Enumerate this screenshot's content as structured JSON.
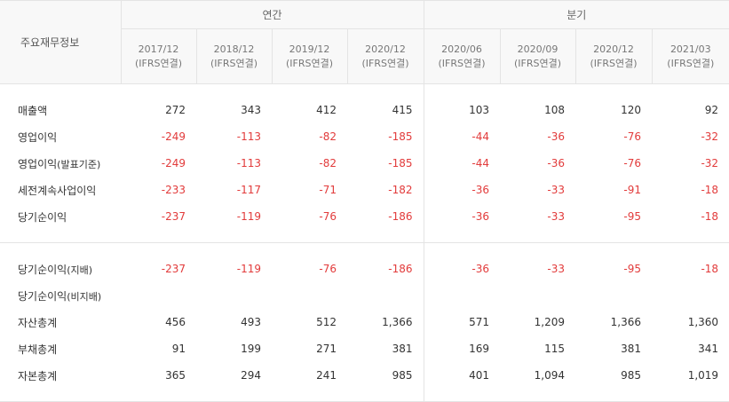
{
  "header": {
    "title": "주요재무정보",
    "annual_label": "연간",
    "quarter_label": "분기",
    "columns": [
      {
        "period": "2017/12",
        "basis": "(IFRS연결)"
      },
      {
        "period": "2018/12",
        "basis": "(IFRS연결)"
      },
      {
        "period": "2019/12",
        "basis": "(IFRS연결)"
      },
      {
        "period": "2020/12",
        "basis": "(IFRS연결)"
      },
      {
        "period": "2020/06",
        "basis": "(IFRS연결)"
      },
      {
        "period": "2020/09",
        "basis": "(IFRS연결)"
      },
      {
        "period": "2020/12",
        "basis": "(IFRS연결)"
      },
      {
        "period": "2021/03",
        "basis": "(IFRS연결)"
      }
    ]
  },
  "rows": [
    {
      "label": "매출액",
      "values": [
        "272",
        "343",
        "412",
        "415",
        "103",
        "108",
        "120",
        "92"
      ]
    },
    {
      "label": "영업이익",
      "values": [
        "-249",
        "-113",
        "-82",
        "-185",
        "-44",
        "-36",
        "-76",
        "-32"
      ]
    },
    {
      "label": "영업이익",
      "label_suffix": "(발표기준)",
      "values": [
        "-249",
        "-113",
        "-82",
        "-185",
        "-44",
        "-36",
        "-76",
        "-32"
      ]
    },
    {
      "label": "세전계속사업이익",
      "values": [
        "-233",
        "-117",
        "-71",
        "-182",
        "-36",
        "-33",
        "-91",
        "-18"
      ]
    },
    {
      "label": "당기순이익",
      "values": [
        "-237",
        "-119",
        "-76",
        "-186",
        "-36",
        "-33",
        "-95",
        "-18"
      ]
    },
    {
      "label": "당기순이익",
      "label_suffix": "(지배)",
      "values": [
        "-237",
        "-119",
        "-76",
        "-186",
        "-36",
        "-33",
        "-95",
        "-18"
      ]
    },
    {
      "label": "당기순이익",
      "label_suffix": "(비지배)",
      "values": [
        "",
        "",
        "",
        "",
        "",
        "",
        "",
        ""
      ]
    },
    {
      "label": "자산총계",
      "values": [
        "456",
        "493",
        "512",
        "1,366",
        "571",
        "1,209",
        "1,366",
        "1,360"
      ]
    },
    {
      "label": "부채총계",
      "values": [
        "91",
        "199",
        "271",
        "381",
        "169",
        "115",
        "381",
        "341"
      ]
    },
    {
      "label": "자본총계",
      "values": [
        "365",
        "294",
        "241",
        "985",
        "401",
        "1,094",
        "985",
        "1,019"
      ]
    }
  ],
  "colors": {
    "negative": "#e23b3b",
    "header_bg": "#f8f8f8",
    "border": "#e4e4e4"
  }
}
